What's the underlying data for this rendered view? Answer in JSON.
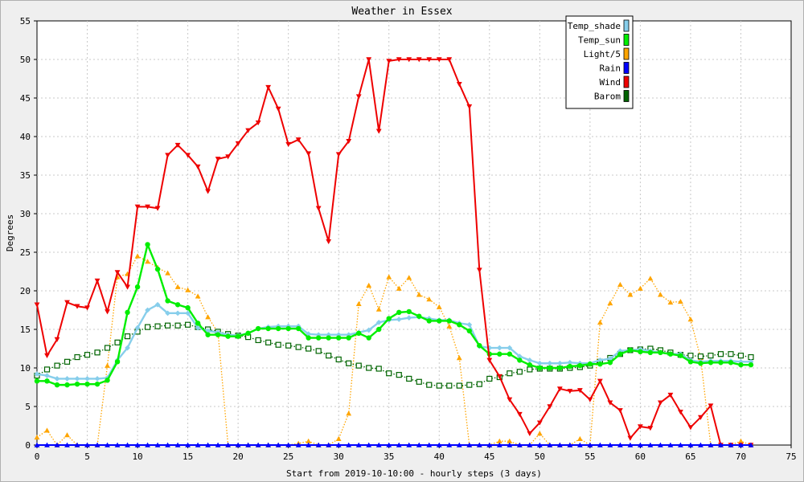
{
  "chart_data": {
    "type": "line",
    "title": "Weather in Essex",
    "xlabel": "Start from 2019-10-10:00 - hourly steps (3 days)",
    "ylabel": "Degrees",
    "xlim": [
      0,
      75
    ],
    "ylim": [
      0,
      55
    ],
    "xticks": [
      0,
      5,
      10,
      15,
      20,
      25,
      30,
      35,
      40,
      45,
      50,
      55,
      60,
      65,
      70,
      75
    ],
    "yticks": [
      0,
      5,
      10,
      15,
      20,
      25,
      30,
      35,
      40,
      45,
      50,
      55
    ],
    "grid": true,
    "legend_position": "top-right",
    "series": [
      {
        "name": "Temp_shade",
        "color": "#87ceeb",
        "marker": "diamond",
        "style": "solid",
        "values": [
          9.2,
          9.0,
          8.6,
          8.6,
          8.6,
          8.6,
          8.6,
          8.7,
          11.0,
          12.6,
          15.2,
          17.5,
          18.2,
          17.1,
          17.1,
          17.1,
          15.2,
          14.8,
          14.6,
          14.3,
          14.2,
          14.5,
          15.1,
          15.3,
          15.4,
          15.4,
          15.4,
          14.4,
          14.3,
          14.3,
          14.3,
          14.3,
          14.6,
          14.9,
          15.9,
          16.2,
          16.3,
          16.5,
          16.6,
          16.4,
          16.2,
          16.2,
          15.8,
          15.6,
          12.8,
          12.6,
          12.6,
          12.6,
          11.5,
          11.0,
          10.6,
          10.6,
          10.6,
          10.7,
          10.6,
          10.6,
          11.0,
          11.2,
          12.2,
          12.3,
          12.4,
          12.2,
          12.0,
          11.8,
          11.8,
          11.0,
          10.8,
          10.9,
          10.9,
          10.9,
          10.8,
          10.8
        ]
      },
      {
        "name": "Temp_sun",
        "color": "#00ee00",
        "marker": "circle",
        "style": "solid",
        "values": [
          8.3,
          8.3,
          7.8,
          7.8,
          7.9,
          7.9,
          7.9,
          8.4,
          10.8,
          17.2,
          20.5,
          26.0,
          22.8,
          18.7,
          18.2,
          17.8,
          15.8,
          14.3,
          14.3,
          14.1,
          14.1,
          14.5,
          15.1,
          15.1,
          15.1,
          15.1,
          15.1,
          13.9,
          13.9,
          13.9,
          13.9,
          13.9,
          14.5,
          13.9,
          15.0,
          16.4,
          17.2,
          17.3,
          16.7,
          16.1,
          16.1,
          16.1,
          15.6,
          14.8,
          12.9,
          11.8,
          11.8,
          11.8,
          11.0,
          10.4,
          10.0,
          10.0,
          10.0,
          10.2,
          10.3,
          10.5,
          10.5,
          10.7,
          11.8,
          12.3,
          12.1,
          12.0,
          12.0,
          11.8,
          11.6,
          10.8,
          10.6,
          10.7,
          10.7,
          10.7,
          10.4,
          10.4
        ]
      },
      {
        "name": "Light/5",
        "color": "#ffa500",
        "marker": "triangle-up",
        "style": "dotted",
        "values": [
          1.0,
          1.9,
          0.0,
          1.3,
          0.0,
          0.0,
          0.0,
          10.3,
          21.8,
          22.2,
          24.5,
          23.8,
          23.0,
          22.3,
          20.5,
          20.1,
          19.3,
          16.6,
          14.6,
          0.0,
          0.0,
          0.0,
          0.0,
          0.0,
          0.0,
          0.0,
          0.2,
          0.5,
          0.0,
          0.0,
          0.8,
          4.1,
          18.3,
          20.7,
          17.6,
          21.8,
          20.3,
          21.7,
          19.5,
          18.9,
          17.9,
          15.4,
          11.3,
          0.0,
          0.0,
          0.0,
          0.5,
          0.5,
          0.0,
          0.0,
          1.5,
          0.0,
          0.0,
          0.0,
          0.8,
          0.0,
          15.9,
          18.4,
          20.8,
          19.5,
          20.3,
          21.6,
          19.5,
          18.5,
          18.6,
          16.3,
          11.3,
          0.0,
          0.0,
          0.0,
          0.5,
          0.0
        ]
      },
      {
        "name": "Rain",
        "color": "#0000ff",
        "marker": "triangle-up",
        "style": "solid",
        "values": [
          0,
          0,
          0,
          0,
          0,
          0,
          0,
          0,
          0,
          0,
          0,
          0,
          0,
          0,
          0,
          0,
          0,
          0,
          0,
          0,
          0,
          0,
          0,
          0,
          0,
          0,
          0,
          0,
          0,
          0,
          0,
          0,
          0,
          0,
          0,
          0,
          0,
          0,
          0,
          0,
          0,
          0,
          0,
          0,
          0,
          0,
          0,
          0,
          0,
          0,
          0,
          0,
          0,
          0,
          0,
          0,
          0,
          0,
          0,
          0,
          0,
          0,
          0,
          0,
          0,
          0,
          0,
          0,
          0,
          0,
          0,
          0
        ]
      },
      {
        "name": "Wind",
        "color": "#ee0000",
        "marker": "triangle-down",
        "style": "solid",
        "values": [
          18.2,
          11.6,
          13.7,
          18.5,
          18.0,
          17.8,
          21.3,
          17.3,
          22.4,
          20.5,
          30.9,
          30.9,
          30.7,
          37.6,
          38.9,
          37.6,
          36.1,
          32.9,
          37.1,
          37.4,
          39.1,
          40.8,
          41.8,
          46.4,
          43.6,
          39.0,
          39.6,
          37.8,
          30.7,
          26.4,
          37.7,
          39.4,
          45.2,
          50.0,
          40.7,
          49.8,
          50.0,
          50.0,
          50.0,
          50.0,
          50.0,
          50.0,
          46.8,
          43.9,
          22.7,
          11.0,
          8.9,
          5.9,
          4.0,
          1.5,
          2.9,
          5.0,
          7.3,
          7.0,
          7.1,
          5.9,
          8.3,
          5.5,
          4.5,
          0.9,
          2.4,
          2.2,
          5.5,
          6.5,
          4.3,
          2.3,
          3.6,
          5.1,
          0.0,
          0.0,
          0.0,
          0.0
        ]
      },
      {
        "name": "Barom",
        "color": "#006400",
        "marker": "square",
        "style": "dotted",
        "values": [
          9.0,
          9.8,
          10.3,
          10.8,
          11.4,
          11.7,
          12.0,
          12.6,
          13.3,
          14.1,
          14.7,
          15.3,
          15.4,
          15.5,
          15.5,
          15.6,
          15.3,
          15.0,
          14.7,
          14.4,
          14.2,
          14.0,
          13.6,
          13.3,
          13.0,
          12.9,
          12.7,
          12.5,
          12.2,
          11.6,
          11.1,
          10.6,
          10.3,
          10.0,
          9.9,
          9.3,
          9.1,
          8.6,
          8.2,
          7.8,
          7.7,
          7.7,
          7.7,
          7.8,
          7.9,
          8.6,
          8.8,
          9.3,
          9.5,
          9.8,
          9.9,
          9.9,
          9.9,
          10.0,
          10.1,
          10.3,
          10.8,
          11.3,
          11.8,
          12.3,
          12.4,
          12.5,
          12.3,
          12.0,
          11.7,
          11.6,
          11.5,
          11.6,
          11.8,
          11.8,
          11.6,
          11.4
        ]
      }
    ]
  }
}
